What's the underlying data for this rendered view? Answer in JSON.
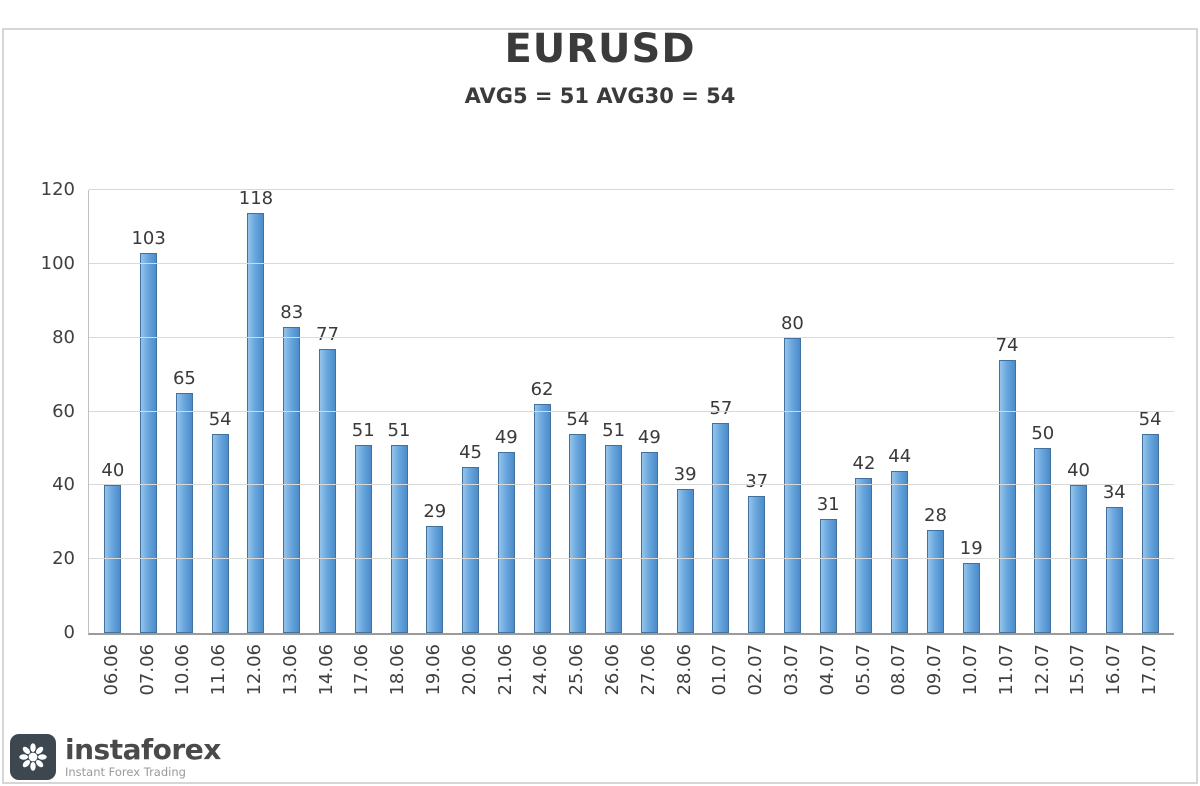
{
  "chart_data": {
    "type": "bar",
    "title": "EURUSD",
    "subtitle": "AVG5 = 51 AVG30 = 54",
    "categories": [
      "06.06",
      "07.06",
      "10.06",
      "11.06",
      "12.06",
      "13.06",
      "14.06",
      "17.06",
      "18.06",
      "19.06",
      "20.06",
      "21.06",
      "24.06",
      "25.06",
      "26.06",
      "27.06",
      "28.06",
      "01.07",
      "02.07",
      "03.07",
      "04.07",
      "05.07",
      "08.07",
      "09.07",
      "10.07",
      "11.07",
      "12.07",
      "15.07",
      "16.07",
      "17.07"
    ],
    "values": [
      40,
      103,
      65,
      54,
      118,
      83,
      77,
      51,
      51,
      29,
      45,
      49,
      62,
      54,
      51,
      49,
      39,
      57,
      37,
      80,
      31,
      42,
      44,
      28,
      19,
      74,
      50,
      40,
      34,
      54
    ],
    "xlabel": "",
    "ylabel": "",
    "ylim": [
      0,
      120
    ],
    "ytick_step": 20,
    "grid": true,
    "legend": "none",
    "bar_color": "#5b9bd5",
    "bar_border_color": "#41719c",
    "gridline_color": "#d9d9d9"
  },
  "logo": {
    "brand": "instaforex",
    "tagline": "Instant Forex Trading",
    "icon": "gear-flower-icon"
  }
}
